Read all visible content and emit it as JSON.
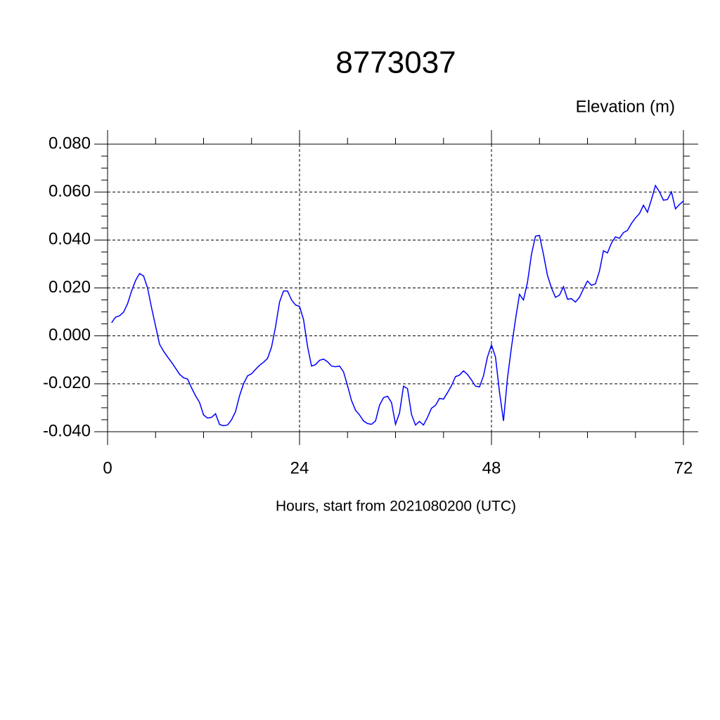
{
  "chart_data": {
    "type": "line",
    "title": "8773037",
    "ylabel": "Elevation (m)",
    "xlabel": "Hours, start from 2021080200 (UTC)",
    "x": [
      0.5,
      1,
      1.5,
      2,
      2.5,
      3,
      3.5,
      4,
      4.5,
      5,
      5.5,
      6,
      6.5,
      7,
      7.5,
      8,
      8.5,
      9,
      9.5,
      10,
      10.5,
      11,
      11.5,
      12,
      12.5,
      13,
      13.5,
      14,
      14.5,
      15,
      15.5,
      16,
      16.5,
      17,
      17.5,
      18,
      18.5,
      19,
      19.5,
      20,
      20.5,
      21,
      21.5,
      22,
      22.5,
      23,
      23.5,
      24,
      24.5,
      25,
      25.5,
      26,
      26.5,
      27,
      27.5,
      28,
      28.5,
      29,
      29.5,
      30,
      30.5,
      31,
      31.5,
      32,
      32.5,
      33,
      33.5,
      34,
      34.5,
      35,
      35.5,
      36,
      36.5,
      37,
      37.5,
      38,
      38.5,
      39,
      39.5,
      40,
      40.5,
      41,
      41.5,
      42,
      42.5,
      43,
      43.5,
      44,
      44.5,
      45,
      45.5,
      46,
      46.5,
      47,
      47.5,
      48,
      48.5,
      49,
      49.5,
      50,
      50.5,
      51,
      51.5,
      52,
      52.5,
      53,
      53.5,
      54,
      54.5,
      55,
      55.5,
      56,
      56.5,
      57,
      57.5,
      58,
      58.5,
      59,
      59.5,
      60,
      60.5,
      61,
      61.5,
      62,
      62.5,
      63,
      63.5,
      64,
      64.5,
      65,
      65.5,
      66,
      66.5,
      67,
      67.5,
      68,
      68.5,
      69,
      69.5,
      70,
      70.5,
      71,
      71.5,
      72
    ],
    "series": [
      {
        "name": "Elevation",
        "color": "#0000ff",
        "values": [
          0.0055,
          0.0078,
          0.0084,
          0.0099,
          0.0134,
          0.0187,
          0.0231,
          0.026,
          0.025,
          0.02,
          0.0117,
          0.0041,
          -0.0035,
          -0.0064,
          -0.0088,
          -0.011,
          -0.0135,
          -0.016,
          -0.0175,
          -0.018,
          -0.0217,
          -0.025,
          -0.0278,
          -0.033,
          -0.0343,
          -0.034,
          -0.0325,
          -0.037,
          -0.0375,
          -0.0372,
          -0.035,
          -0.0316,
          -0.025,
          -0.02,
          -0.0167,
          -0.0158,
          -0.014,
          -0.0123,
          -0.011,
          -0.0094,
          -0.0047,
          0.0038,
          0.0141,
          0.0187,
          0.0187,
          0.015,
          0.0129,
          0.0123,
          0.0068,
          -0.0044,
          -0.0126,
          -0.012,
          -0.0102,
          -0.0097,
          -0.0108,
          -0.0126,
          -0.0129,
          -0.0126,
          -0.015,
          -0.0208,
          -0.027,
          -0.031,
          -0.033,
          -0.0355,
          -0.0366,
          -0.0369,
          -0.0355,
          -0.029,
          -0.0258,
          -0.0252,
          -0.0278,
          -0.0369,
          -0.0322,
          -0.021,
          -0.022,
          -0.0328,
          -0.0372,
          -0.0357,
          -0.0372,
          -0.034,
          -0.0302,
          -0.029,
          -0.0261,
          -0.0264,
          -0.0237,
          -0.0208,
          -0.017,
          -0.0164,
          -0.0146,
          -0.0161,
          -0.0184,
          -0.021,
          -0.0213,
          -0.0167,
          -0.0088,
          -0.0038,
          -0.0088,
          -0.0234,
          -0.0355,
          -0.0176,
          -0.0047,
          0.0068,
          0.0173,
          0.015,
          0.0223,
          0.034,
          0.0416,
          0.0419,
          0.034,
          0.0252,
          0.02,
          0.0161,
          0.017,
          0.0205,
          0.0153,
          0.0155,
          0.0141,
          0.0161,
          0.0196,
          0.0229,
          0.0211,
          0.0217,
          0.027,
          0.0355,
          0.0346,
          0.0387,
          0.0413,
          0.0407,
          0.0431,
          0.044,
          0.0469,
          0.0492,
          0.051,
          0.0545,
          0.0516,
          0.0569,
          0.0627,
          0.0601,
          0.0566,
          0.0569,
          0.0601,
          0.053,
          0.0548,
          0.0563
        ]
      }
    ],
    "xlim": [
      0,
      72
    ],
    "xticks": [
      0,
      24,
      48,
      72
    ],
    "ylim": [
      -0.04,
      0.08
    ],
    "yticks": [
      {
        "value": -0.04,
        "label": "-0.040"
      },
      {
        "value": -0.02,
        "label": "-0.020"
      },
      {
        "value": 0,
        "label": "0.000"
      },
      {
        "value": 0.02,
        "label": "0.020"
      },
      {
        "value": 0.04,
        "label": "0.040"
      },
      {
        "value": 0.06,
        "label": "0.060"
      },
      {
        "value": 0.08,
        "label": "0.080"
      }
    ],
    "grid": true
  }
}
